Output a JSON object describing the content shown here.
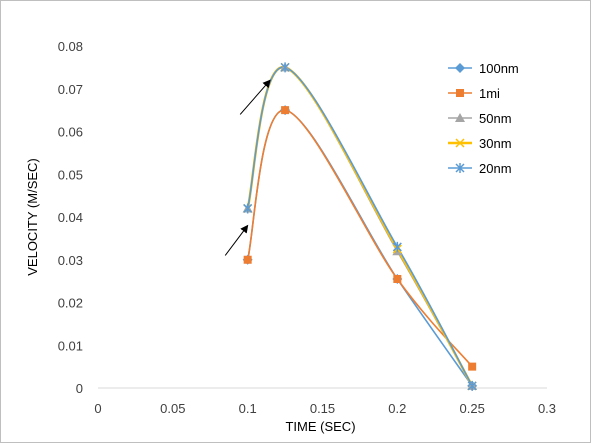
{
  "chart_data": {
    "type": "scatter",
    "title": "",
    "xlabel": "TIME (SEC)",
    "ylabel": "VELOCITY (M/SEC)",
    "xlim": [
      0,
      0.3
    ],
    "ylim": [
      0,
      0.08
    ],
    "x_ticks": [
      "0",
      "0.05",
      "0.1",
      "0.15",
      "0.2",
      "0.25",
      "0.3"
    ],
    "y_ticks": [
      "0",
      "0.01",
      "0.02",
      "0.03",
      "0.04",
      "0.05",
      "0.06",
      "0.07",
      "0.08"
    ],
    "grid": false,
    "legend_position": "top-right",
    "series": [
      {
        "name": "100nm",
        "color": "#5b9bd5",
        "marker": "diamond",
        "x": [
          0.1,
          0.125,
          0.2,
          0.25
        ],
        "y": [
          0.03,
          0.065,
          0.0255,
          0.0005
        ]
      },
      {
        "name": "1mi",
        "color": "#ed7d31",
        "marker": "square",
        "x": [
          0.1,
          0.125,
          0.2,
          0.25
        ],
        "y": [
          0.03,
          0.065,
          0.0255,
          0.005
        ]
      },
      {
        "name": "50nm",
        "color": "#a5a5a5",
        "marker": "triangle",
        "x": [
          0.1,
          0.125,
          0.2,
          0.25
        ],
        "y": [
          0.042,
          0.075,
          0.032,
          0.0005
        ]
      },
      {
        "name": "30nm",
        "color": "#ffc000",
        "marker": "x",
        "x": [
          0.1,
          0.125,
          0.2,
          0.25
        ],
        "y": [
          0.042,
          0.075,
          0.0325,
          0.0005
        ]
      },
      {
        "name": "20nm",
        "color": "#5b9bd5",
        "marker": "star",
        "x": [
          0.1,
          0.125,
          0.2,
          0.25
        ],
        "y": [
          0.042,
          0.075,
          0.033,
          0.0005
        ]
      }
    ],
    "annotations": [
      {
        "type": "arrow",
        "from": [
          0.085,
          0.031
        ],
        "to": [
          0.1,
          0.038
        ]
      },
      {
        "type": "arrow",
        "from": [
          0.095,
          0.064
        ],
        "to": [
          0.115,
          0.072
        ]
      }
    ]
  }
}
